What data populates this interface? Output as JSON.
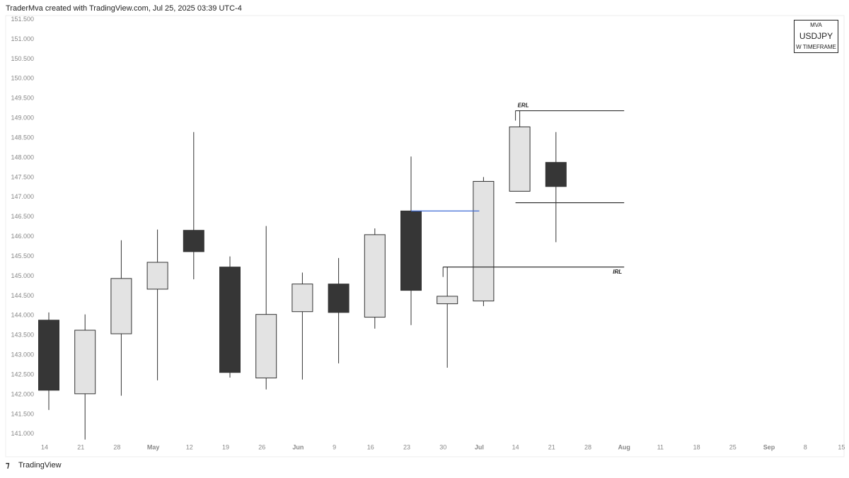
{
  "header": {
    "text": "TraderMva created with TradingView.com, Jul 25, 2025 03:39 UTC-4"
  },
  "badge": {
    "lines": [
      "MVA",
      "USDJPY",
      "W TIMEFRAME"
    ]
  },
  "footer": {
    "brand": "TradingView"
  },
  "chart_data": {
    "type": "candlestick",
    "categories": [
      "14",
      "21",
      "28",
      "May",
      "12",
      "19",
      "26",
      "Jun",
      "9",
      "16",
      "23",
      "30",
      "Jul",
      "14",
      "21",
      "28",
      "Aug",
      "11",
      "18",
      "25",
      "Sep",
      "8",
      "15"
    ],
    "open": [
      143.885,
      142.02,
      143.54,
      144.67,
      146.16,
      145.23,
      142.42,
      144.1,
      144.8,
      143.96,
      146.65,
      144.3,
      144.37,
      147.15,
      147.88,
      null,
      null,
      null,
      null,
      null,
      null,
      null,
      null
    ],
    "high": [
      144.08,
      144.03,
      145.91,
      146.18,
      148.65,
      145.5,
      146.27,
      145.09,
      145.46,
      146.21,
      148.03,
      145.23,
      147.51,
      149.19,
      148.65,
      null,
      null,
      null,
      null,
      null,
      null,
      null,
      null
    ],
    "low": [
      141.61,
      140.86,
      141.97,
      142.36,
      144.92,
      142.43,
      142.13,
      142.38,
      142.79,
      143.67,
      143.76,
      142.68,
      144.24,
      147.15,
      145.86,
      null,
      null,
      null,
      null,
      null,
      null,
      null,
      null
    ],
    "close": [
      142.11,
      143.63,
      144.94,
      145.35,
      145.62,
      142.56,
      144.03,
      144.8,
      144.08,
      146.05,
      144.64,
      144.49,
      147.4,
      148.78,
      147.27,
      null,
      null,
      null,
      null,
      null,
      null,
      null,
      null
    ],
    "up_color": "#e3e3e3",
    "down_color": "#363636",
    "border_color": "#333333",
    "levels": [
      {
        "label": "ERL",
        "value": 149.19,
        "color": "#333333"
      },
      {
        "value": 146.86,
        "color": "#333333"
      },
      {
        "label": "IRL",
        "value": 145.23,
        "color": "#333333"
      },
      {
        "value": 146.65,
        "color": "#3d6ad6"
      }
    ],
    "ylim": [
      140.8,
      151.6
    ],
    "yticks": [
      {
        "value": 141,
        "label": "141.000"
      },
      {
        "value": 141.5,
        "label": "141.500"
      },
      {
        "value": 142,
        "label": "142.000"
      },
      {
        "value": 142.5,
        "label": "142.500"
      },
      {
        "value": 143,
        "label": "143.000"
      },
      {
        "value": 143.5,
        "label": "143.500"
      },
      {
        "value": 144,
        "label": "144.000"
      },
      {
        "value": 144.5,
        "label": "144.500"
      },
      {
        "value": 145,
        "label": "145.000"
      },
      {
        "value": 145.5,
        "label": "145.500"
      },
      {
        "value": 146,
        "label": "146.000"
      },
      {
        "value": 146.5,
        "label": "146.500"
      },
      {
        "value": 147,
        "label": "147.000"
      },
      {
        "value": 147.5,
        "label": "147.500"
      },
      {
        "value": 148,
        "label": "148.000"
      },
      {
        "value": 148.5,
        "label": "148.500"
      },
      {
        "value": 149,
        "label": "149.000"
      },
      {
        "value": 149.5,
        "label": "149.500"
      },
      {
        "value": 150,
        "label": "150.000"
      },
      {
        "value": 150.5,
        "label": "150.500"
      },
      {
        "value": 151,
        "label": "151.000"
      },
      {
        "value": 151.5,
        "label": "151.500"
      }
    ],
    "grid": false
  }
}
